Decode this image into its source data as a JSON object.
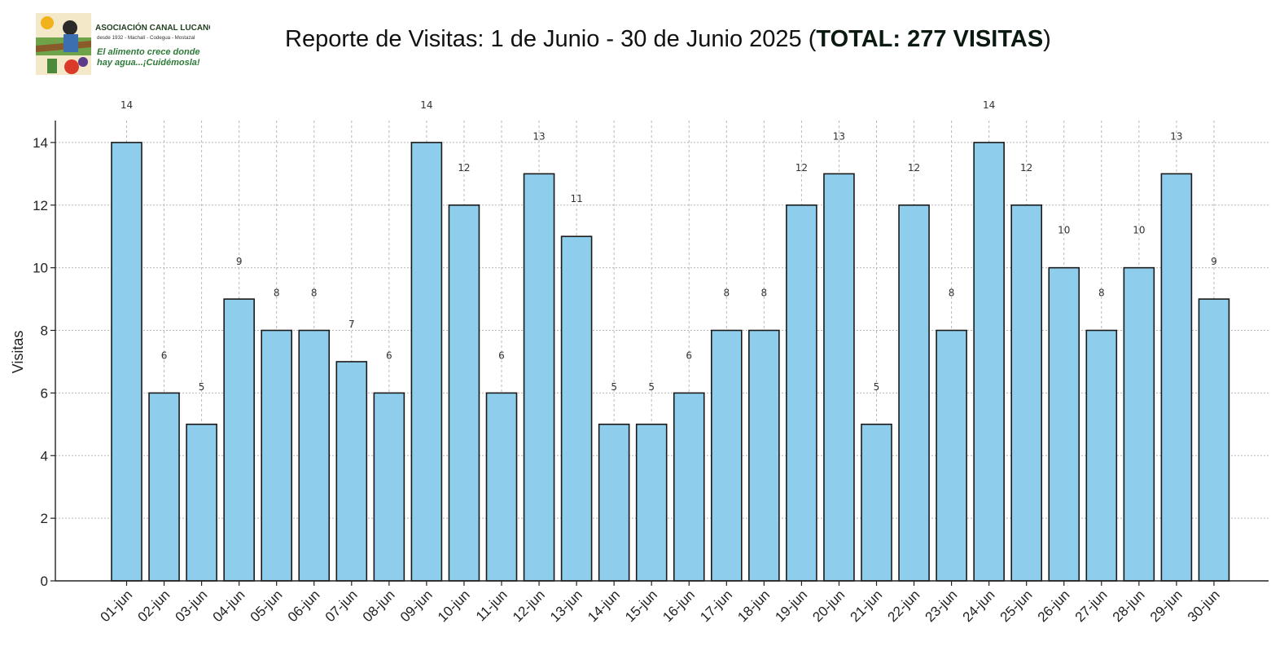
{
  "logo": {
    "org": "ASOCIACIÓN CANAL LUCANO",
    "sub": "desde 1932 - Machalí - Codegua - Mostazal",
    "slogan1": "El alimento crece donde",
    "slogan2": "hay agua...¡Cuidémosla!"
  },
  "title": {
    "prefix": "Reporte de Visitas: 1 de Junio - 30 de Junio 2025 (",
    "bold": "TOTAL: 277 VISITAS",
    "suffix": ")"
  },
  "colors": {
    "bar": "#8ecdec",
    "bar_edge": "#1a1a1a",
    "grid": "#b8b8b8"
  },
  "chart_data": {
    "type": "bar",
    "categories": [
      "01-jun",
      "02-jun",
      "03-jun",
      "04-jun",
      "05-jun",
      "06-jun",
      "07-jun",
      "08-jun",
      "09-jun",
      "10-jun",
      "11-jun",
      "12-jun",
      "13-jun",
      "14-jun",
      "15-jun",
      "16-jun",
      "17-jun",
      "18-jun",
      "19-jun",
      "20-jun",
      "21-jun",
      "22-jun",
      "23-jun",
      "24-jun",
      "25-jun",
      "26-jun",
      "27-jun",
      "28-jun",
      "29-jun",
      "30-jun"
    ],
    "values": [
      14,
      6,
      5,
      9,
      8,
      8,
      7,
      6,
      14,
      12,
      6,
      13,
      11,
      5,
      5,
      6,
      8,
      8,
      12,
      13,
      5,
      12,
      8,
      14,
      12,
      10,
      8,
      10,
      13,
      9
    ],
    "ylabel": "Visitas",
    "xlabel": "",
    "ylim": [
      0,
      14.7
    ],
    "yticks": [
      0,
      2,
      4,
      6,
      8,
      10,
      12,
      14
    ],
    "grid": true,
    "data_labels": true
  }
}
